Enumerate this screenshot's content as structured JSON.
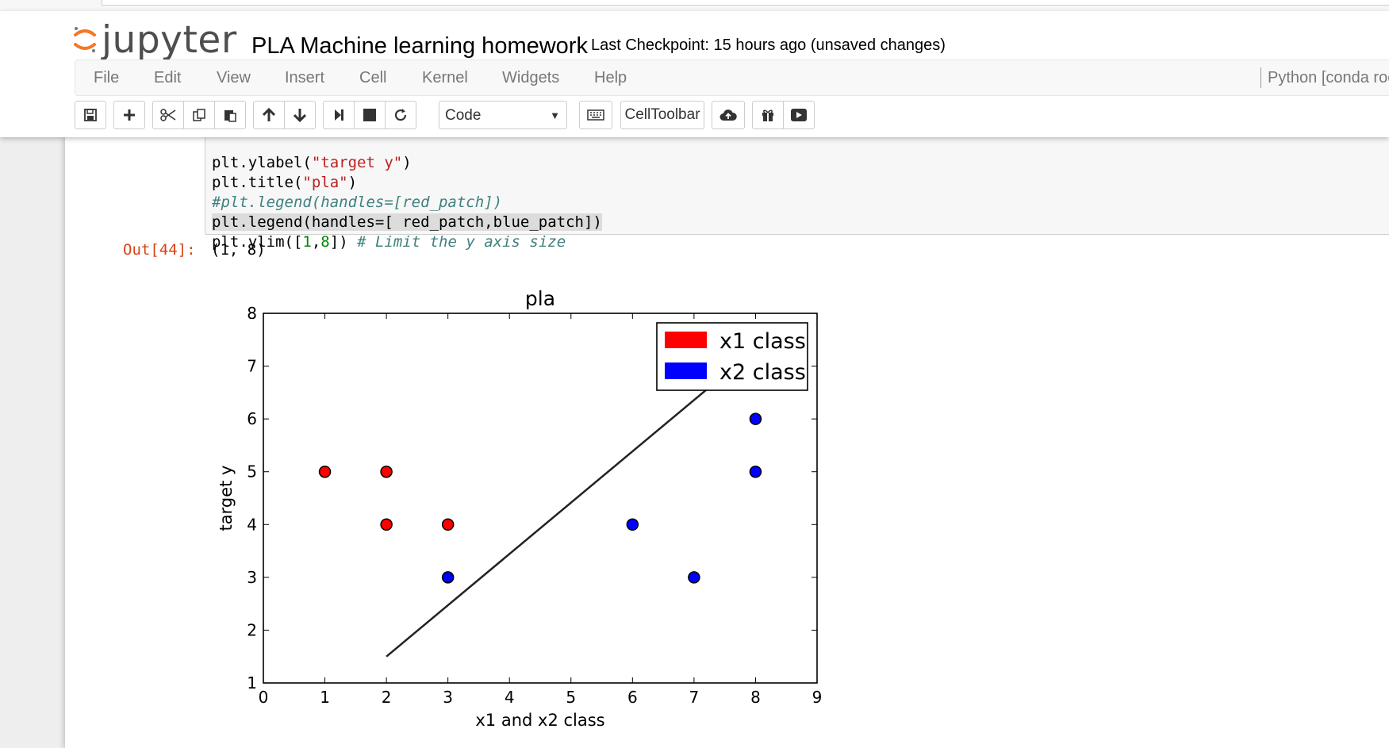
{
  "header": {
    "logo_text": "jupyter",
    "notebook_name": "PLA Machine learning homework",
    "checkpoint": "Last Checkpoint: 15 hours ago (unsaved changes)"
  },
  "menu": {
    "items": [
      "File",
      "Edit",
      "View",
      "Insert",
      "Cell",
      "Kernel",
      "Widgets",
      "Help"
    ],
    "kernel": "Python [conda roo"
  },
  "toolbar": {
    "cell_type": "Code",
    "celltoolbar_label": "CellToolbar",
    "icons": [
      "save-icon",
      "plus-icon",
      "cut-icon",
      "copy-icon",
      "paste-icon",
      "arrow-up-icon",
      "arrow-down-icon",
      "step-forward-icon",
      "stop-icon",
      "restart-icon",
      "keyboard-icon",
      "cloud-upload-icon",
      "gift-icon",
      "play-icon"
    ]
  },
  "cell": {
    "code_lines": [
      "plt.ylabel(\"target y\")",
      "plt.title(\"pla\")",
      "#plt.legend(handles=[red_patch])",
      "plt.legend(handles=[ red_patch,blue_patch])",
      "plt.ylim([1,8]) # Limit the y axis size"
    ],
    "out_prompt": "Out[44]:",
    "out_value": "(1, 8)"
  },
  "chart_data": {
    "type": "scatter",
    "title": "pla",
    "xlabel": "x1 and x2 class",
    "ylabel": "target y",
    "xlim": [
      0,
      9
    ],
    "ylim": [
      1,
      8
    ],
    "xticks": [
      "0",
      "1",
      "2",
      "3",
      "4",
      "5",
      "6",
      "7",
      "8",
      "9"
    ],
    "yticks": [
      "1",
      "2",
      "3",
      "4",
      "5",
      "6",
      "7",
      "8"
    ],
    "grid": false,
    "legend_position": "top-right",
    "series": [
      {
        "name": "x1 class",
        "color": "#ff0000",
        "points": [
          [
            1,
            5
          ],
          [
            2,
            5
          ],
          [
            2,
            4
          ],
          [
            3,
            4
          ]
        ]
      },
      {
        "name": "x2 class",
        "color": "#0000ff",
        "points": [
          [
            3,
            3
          ],
          [
            6,
            4
          ],
          [
            7,
            3
          ],
          [
            8,
            6
          ],
          [
            8,
            5
          ]
        ]
      }
    ],
    "line": {
      "color": "#222222",
      "points": [
        [
          2,
          1.5
        ],
        [
          7.25,
          6.6
        ]
      ]
    }
  }
}
